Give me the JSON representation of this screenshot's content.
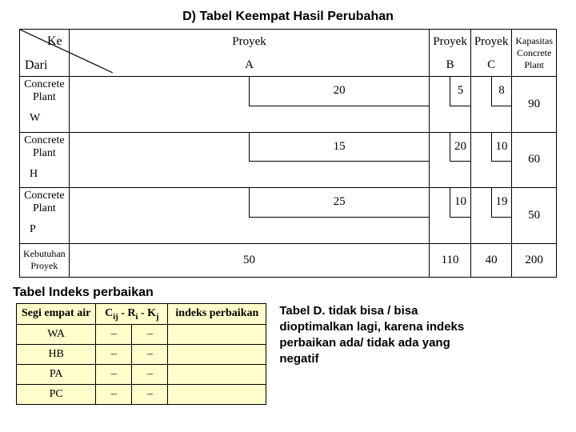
{
  "title": "D) Tabel Keempat Hasil Perubahan",
  "header": {
    "ke": "Ke",
    "dari": "Dari",
    "proyekWord": "Proyek",
    "colA": "A",
    "colB": "B",
    "colC": "C",
    "kapasitas": "Kapasitas Concrete Plant"
  },
  "rows": {
    "wLabel": "Concrete Plant",
    "wLetter": "W",
    "wA": "20",
    "wB": "5",
    "wC": "8",
    "wCap": "90",
    "hLabel": "Concrete Plant",
    "hLetter": "H",
    "hA": "15",
    "hB": "20",
    "hC": "10",
    "hCap": "60",
    "pLabel": "Concrete Plant",
    "pLetter": "P",
    "pA": "25",
    "pB": "10",
    "pC": "19",
    "pCap": "50"
  },
  "demand": {
    "label": "Kebutuhan Proyek",
    "a": "50",
    "b": "110",
    "c": "40",
    "total": "200"
  },
  "indeks": {
    "title": "Tabel Indeks perbaikan",
    "col1": "Segi empat air",
    "col2html": "C<sub>ij</sub> - R<sub>i</sub> - K<sub>j</sub>",
    "col3": "indeks perbaikan",
    "r1": "WA",
    "r2": "HB",
    "r3": "PA",
    "r4": "PC",
    "dash": "–"
  },
  "note": "Tabel D. tidak bisa / bisa dioptimalkan lagi, karena indeks perbaikan ada/ tidak ada yang negatif"
}
